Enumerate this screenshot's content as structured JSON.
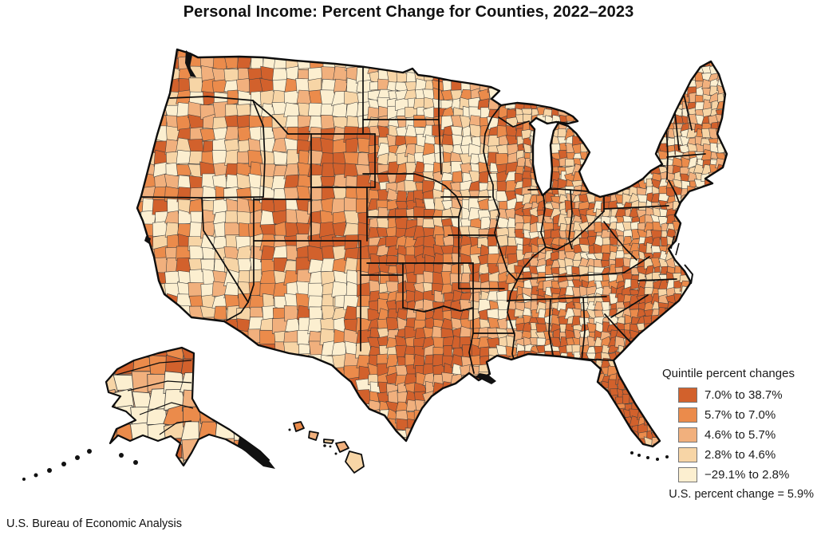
{
  "page": {
    "title": "Personal Income: Percent Change for Counties, 2022–2023",
    "source": "U.S. Bureau of Economic Analysis"
  },
  "legend": {
    "title": "Quintile percent changes",
    "note": "U.S. percent change = 5.9%",
    "items": [
      {
        "label": "7.0% to 38.7%",
        "color": "#D2612C"
      },
      {
        "label": "5.7% to 7.0%",
        "color": "#EB8B4B"
      },
      {
        "label": "4.6% to 5.7%",
        "color": "#F1B07D"
      },
      {
        "label": "2.8% to 4.6%",
        "color": "#F7D5A6"
      },
      {
        "label": "−29.1% to 2.8%",
        "color": "#FCEFD0"
      }
    ]
  },
  "map": {
    "region": "United States counties (with Alaska and Hawaii insets)",
    "outline_color": "#0d0d0d",
    "county_line_color": "#3f3f3f"
  },
  "chart_data": {
    "type": "choropleth-map",
    "title": "Personal Income: Percent Change for Counties, 2022–2023",
    "geography": "U.S. counties",
    "period": "2022–2023",
    "unit": "percent change",
    "classification": "quintiles",
    "us_percent_change": 5.9,
    "value_min": -29.1,
    "value_max": 38.7,
    "classes": [
      {
        "from": 7.0,
        "to": 38.7,
        "label": "7.0% to 38.7%",
        "color": "#D2612C"
      },
      {
        "from": 5.7,
        "to": 7.0,
        "label": "5.7% to 7.0%",
        "color": "#EB8B4B"
      },
      {
        "from": 4.6,
        "to": 5.7,
        "label": "4.6% to 5.7%",
        "color": "#F1B07D"
      },
      {
        "from": 2.8,
        "to": 4.6,
        "label": "2.8% to 4.6%",
        "color": "#F7D5A6"
      },
      {
        "from": -29.1,
        "to": 2.8,
        "label": "−29.1% to 2.8%",
        "color": "#FCEFD0"
      }
    ],
    "legend_title": "Quintile percent changes",
    "source": "U.S. Bureau of Economic Analysis"
  }
}
